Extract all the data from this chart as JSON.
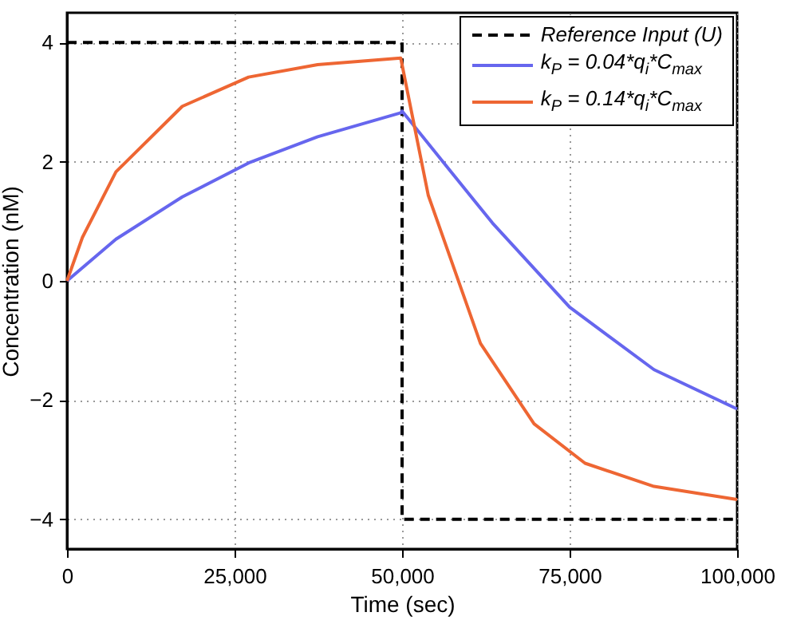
{
  "chart_data": {
    "type": "line",
    "xlabel": "Time (sec)",
    "ylabel": "Concentration (nM)",
    "xlim": [
      0,
      100000
    ],
    "xticks": [
      0,
      {
        "value": 25000,
        "label": "25,000"
      },
      {
        "value": 50000,
        "label": "50,000"
      },
      {
        "value": 75000,
        "label": "75,000"
      },
      {
        "value": 100000,
        "label": "100,000"
      }
    ],
    "ylim": [
      -4.5,
      4.5
    ],
    "yticks": [
      -4,
      -2,
      0,
      2,
      4
    ],
    "grid": true,
    "legend": "top right",
    "series": [
      {
        "name": "Reference Input (U)",
        "color": "#000000",
        "line_style": "dashed",
        "x": [
          0,
          50000,
          50000,
          100000
        ],
        "values": [
          4,
          4,
          -4,
          -4
        ]
      },
      {
        "name": "k$_{P}$ = 0.04*q$_{i}$*C$_{max}$",
        "color": "#6666ee",
        "x": [
          0,
          7300,
          17200,
          27100,
          37400,
          49800,
          50000,
          57300,
          63500,
          75000,
          87600,
          100000
        ],
        "values": [
          0,
          0.7,
          1.41,
          1.98,
          2.42,
          2.82,
          2.85,
          1.83,
          0.97,
          -0.44,
          -1.49,
          -2.15
        ]
      },
      {
        "name": "k$_{P}$ = 0.14*q$_{i}$*C$_{max}$",
        "color": "#ee6633",
        "x": [
          0,
          2300,
          7300,
          17200,
          27100,
          37400,
          49800,
          53900,
          61700,
          69700,
          77300,
          87600,
          100000
        ],
        "values": [
          0,
          0.73,
          1.83,
          2.93,
          3.42,
          3.63,
          3.74,
          1.44,
          -1.05,
          -2.4,
          -3.06,
          -3.45,
          -3.67
        ]
      }
    ]
  }
}
